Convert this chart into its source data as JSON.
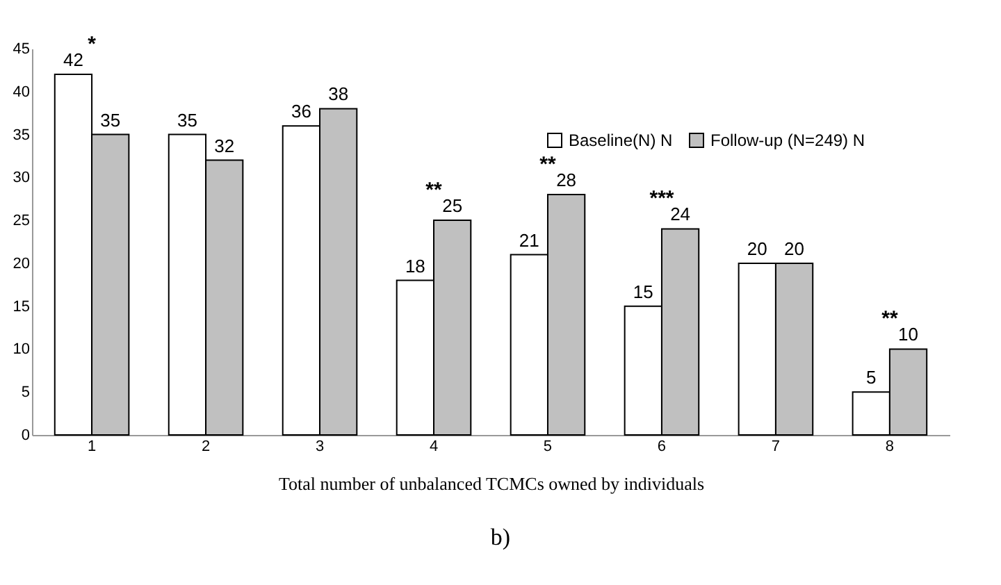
{
  "chart_data": {
    "type": "bar",
    "categories": [
      "1",
      "2",
      "3",
      "4",
      "5",
      "6",
      "7",
      "8"
    ],
    "series": [
      {
        "name": "Baseline(N) N",
        "color": "#ffffff",
        "values": [
          42,
          35,
          36,
          18,
          21,
          15,
          20,
          5
        ]
      },
      {
        "name": "Follow-up (N=249) N",
        "color": "#c0c0c0",
        "values": [
          35,
          32,
          38,
          25,
          28,
          24,
          20,
          10
        ]
      }
    ],
    "xlabel": "Total number of unbalanced TCMCs owned by individuals",
    "ylim": [
      0,
      45
    ],
    "yticks": [
      0,
      5,
      10,
      15,
      20,
      25,
      30,
      35,
      40,
      45
    ],
    "grid": false,
    "legend": "top right",
    "data_labels": true,
    "annotations": [
      {
        "text": "*",
        "x": "1",
        "y": 42
      },
      {
        "text": "**",
        "x": "4",
        "y": 25
      },
      {
        "text": "**",
        "x": "5",
        "y": 28
      },
      {
        "text": "***",
        "x": "6",
        "y": 24
      },
      {
        "text": "**",
        "x": "8",
        "y": 10
      },
      "b)"
    ]
  }
}
